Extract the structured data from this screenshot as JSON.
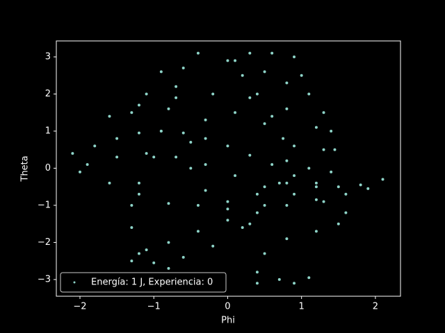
{
  "chart_data": {
    "type": "scatter",
    "x_label": "Phi",
    "y_label": "Theta",
    "xlim": [
      -2.32,
      2.34
    ],
    "ylim": [
      -3.45,
      3.43
    ],
    "xticks": [
      {
        "value": -2,
        "label": "−2"
      },
      {
        "value": -1,
        "label": "−1"
      },
      0,
      1,
      2
    ],
    "yticks": [
      {
        "value": -3,
        "label": "−3"
      },
      {
        "value": -2,
        "label": "−2"
      },
      {
        "value": -1,
        "label": "−1"
      },
      0,
      1,
      2,
      3
    ],
    "legend": "lower left",
    "series": [
      {
        "name": "Energía: 1 J, Experiencia: 0",
        "color": "#8dd3c7",
        "x": [
          -2.1,
          -1.8,
          -1.5,
          -1.2,
          -0.9,
          -0.6,
          -0.3,
          0,
          0.3,
          0.6,
          0.9,
          1.2,
          1.5,
          1.8,
          2.1,
          1.9,
          1.6,
          1.2,
          0.8,
          0.4,
          0,
          -0.4,
          -0.8,
          -1.2,
          -1.3,
          -1.0,
          -0.6,
          -0.2,
          0.2,
          0.5,
          0.7,
          0.8,
          0.75,
          0.6,
          0.4,
          0.2,
          0,
          0.3,
          0.5,
          0.8,
          1.1,
          1.3,
          1.4,
          1.3,
          1.1,
          0.8,
          0.4,
          0,
          -0.4,
          -0.8,
          -1.2,
          -1.6,
          -2.0,
          -1.9,
          -1.5,
          -1.1,
          -0.7,
          -0.3,
          0.1,
          0.5,
          0.9,
          1.3,
          1.6,
          1.5,
          1.2,
          0.8,
          0.5,
          0.4,
          0.4,
          0.7,
          0.9,
          1.1,
          -0.5,
          -0.8,
          -1.1,
          -1.3,
          -1.3,
          -1.2,
          -1.0,
          -0.9,
          -0.8,
          -0.7,
          -0.6,
          -0.4,
          -0.9,
          -1.1,
          -1.3,
          -1.6,
          -1.2,
          -0.7,
          -0.2,
          0.3,
          0.8,
          1.2,
          1.45,
          1.4,
          1.2,
          0.9,
          0.5,
          0.1,
          -0.3,
          -0.5,
          -0.5,
          -0.3,
          0,
          0.3,
          0.1,
          0.6,
          0.9,
          1.0
        ],
        "values": [
          0.4,
          0.6,
          0.8,
          0.95,
          1.0,
          0.95,
          0.8,
          0.6,
          0.35,
          0.1,
          -0.2,
          -0.4,
          -0.5,
          -0.45,
          -0.3,
          -0.55,
          -0.7,
          -0.85,
          -1.0,
          -1.2,
          -1.4,
          -1.7,
          -2.0,
          -2.3,
          -2.5,
          -2.55,
          -2.4,
          -2.1,
          -1.6,
          -1.0,
          -0.4,
          0.2,
          0.8,
          1.4,
          2.0,
          2.5,
          2.9,
          3.1,
          2.6,
          2.3,
          2.0,
          1.5,
          1.0,
          0.5,
          0,
          -0.4,
          -0.7,
          -0.9,
          -1.0,
          -0.95,
          -0.7,
          -0.4,
          -0.1,
          0.1,
          0.3,
          0.4,
          0.3,
          0.1,
          -0.2,
          -0.5,
          -0.7,
          -0.9,
          -1.2,
          -1.5,
          -1.7,
          -1.9,
          -2.3,
          -2.8,
          -3.1,
          -3.0,
          -3.1,
          -2.95,
          -3.1,
          -2.7,
          -2.2,
          -1.6,
          -1.0,
          -0.4,
          0.3,
          1.0,
          1.6,
          2.2,
          2.7,
          3.1,
          2.6,
          2.0,
          1.5,
          1.4,
          1.7,
          1.9,
          2.0,
          1.9,
          1.6,
          1.1,
          0.5,
          -0.1,
          -0.5,
          0.6,
          1.2,
          1.5,
          1.3,
          0.7,
          0.0,
          -0.6,
          -1.1,
          -1.5,
          2.9,
          3.1,
          3.0,
          2.5
        ]
      }
    ]
  }
}
